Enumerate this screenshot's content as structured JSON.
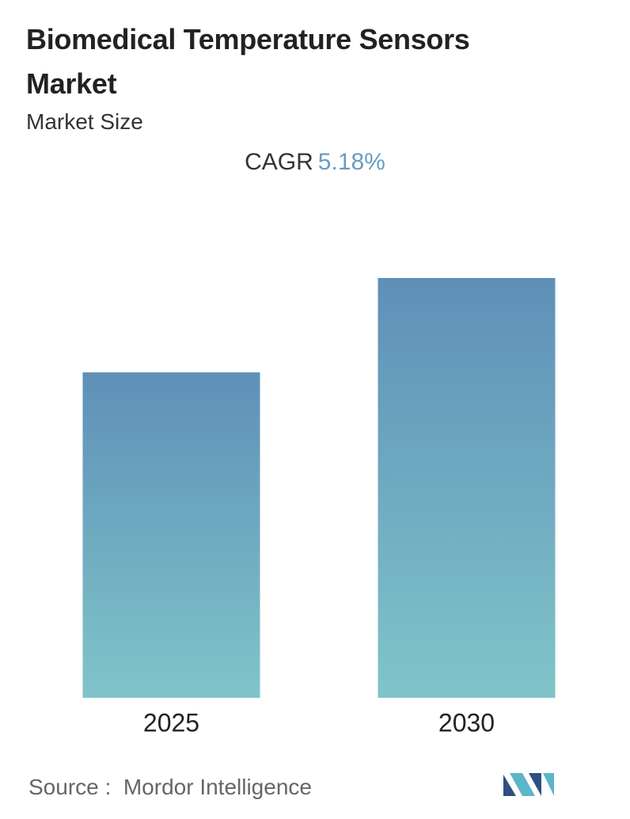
{
  "chart_data": {
    "type": "bar",
    "title": "Biomedical Temperature Sensors Market",
    "subtitle": "Market Size",
    "cagr_label": "CAGR",
    "cagr_value": "5.18%",
    "categories": [
      "2025",
      "2030"
    ],
    "values": [
      100,
      129
    ],
    "color_top": "#5e90b8",
    "color_bottom": "#80c4c9",
    "ylim": [
      0,
      129
    ],
    "source_label": "Source :",
    "source": "Mordor Intelligence"
  }
}
